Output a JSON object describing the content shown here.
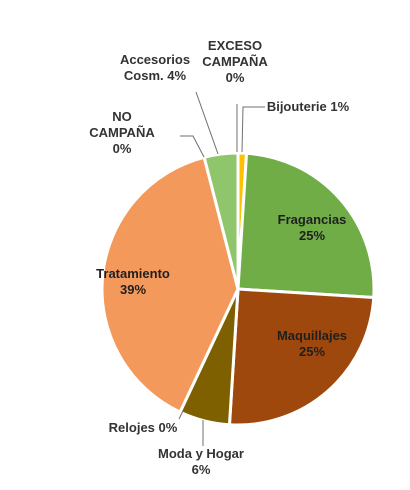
{
  "chart_data": {
    "type": "pie",
    "title": "",
    "slices": [
      {
        "label": "Bijouterie",
        "value": 1,
        "label_text": "Bijouterie 1%",
        "color": "#ffc000"
      },
      {
        "label": "Fragancias",
        "value": 25,
        "label_text": "Fragancias\n25%",
        "color": "#70ad47"
      },
      {
        "label": "Maquillajes",
        "value": 25,
        "label_text": "Maquillajes\n25%",
        "color": "#9e480e"
      },
      {
        "label": "Moda y Hogar",
        "value": 6,
        "label_text": "Moda y Hogar\n6%",
        "color": "#7f6000"
      },
      {
        "label": "Relojes",
        "value": 0,
        "label_text": "Relojes 0%",
        "color": "#a5a5a5"
      },
      {
        "label": "Tratamiento",
        "value": 39,
        "label_text": "Tratamiento\n39%",
        "color": "#f4995c"
      },
      {
        "label": "NO CAMPAÑA",
        "value": 0,
        "label_text": "NO\nCAMPAÑA\n0%",
        "color": "#5b9bd5"
      },
      {
        "label": "Accesorios Cosm.",
        "value": 4,
        "label_text": "Accesorios\nCosm. 4%",
        "color": "#8fc66b"
      },
      {
        "label": "EXCESO CAMPAÑA",
        "value": 0,
        "label_text": "EXCESO\nCAMPAÑA\n0%",
        "color": "#4472c4"
      }
    ]
  }
}
